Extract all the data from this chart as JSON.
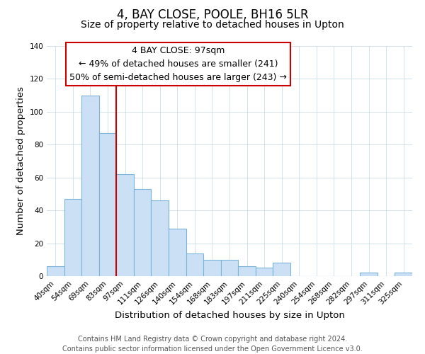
{
  "title": "4, BAY CLOSE, POOLE, BH16 5LR",
  "subtitle": "Size of property relative to detached houses in Upton",
  "xlabel": "Distribution of detached houses by size in Upton",
  "ylabel": "Number of detached properties",
  "categories": [
    "40sqm",
    "54sqm",
    "69sqm",
    "83sqm",
    "97sqm",
    "111sqm",
    "126sqm",
    "140sqm",
    "154sqm",
    "168sqm",
    "183sqm",
    "197sqm",
    "211sqm",
    "225sqm",
    "240sqm",
    "254sqm",
    "268sqm",
    "282sqm",
    "297sqm",
    "311sqm",
    "325sqm"
  ],
  "values": [
    6,
    47,
    110,
    87,
    62,
    53,
    46,
    29,
    14,
    10,
    10,
    6,
    5,
    8,
    0,
    0,
    0,
    0,
    2,
    0,
    2
  ],
  "bar_color": "#cce0f5",
  "bar_edge_color": "#7ab4d8",
  "vline_color": "#cc0000",
  "vline_index": 4,
  "annotation_line1": "4 BAY CLOSE: 97sqm",
  "annotation_line2": "← 49% of detached houses are smaller (241)",
  "annotation_line3": "50% of semi-detached houses are larger (243) →",
  "ylim": [
    0,
    140
  ],
  "yticks": [
    0,
    20,
    40,
    60,
    80,
    100,
    120,
    140
  ],
  "footer_line1": "Contains HM Land Registry data © Crown copyright and database right 2024.",
  "footer_line2": "Contains public sector information licensed under the Open Government Licence v3.0.",
  "background_color": "#ffffff",
  "grid_color": "#ccdde8",
  "title_fontsize": 12,
  "subtitle_fontsize": 10,
  "axis_label_fontsize": 9.5,
  "tick_fontsize": 7.5,
  "annotation_fontsize": 9,
  "footer_fontsize": 7
}
